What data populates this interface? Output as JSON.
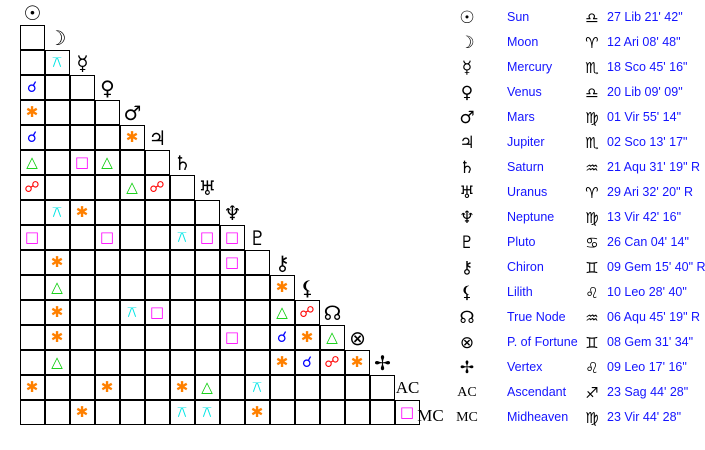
{
  "planets": [
    {
      "name": "Sun",
      "glyph": "☉",
      "sign": "♎",
      "position": "27 Lib 21' 42\""
    },
    {
      "name": "Moon",
      "glyph": "☽",
      "sign": "♈",
      "position": "12 Ari 08' 48\""
    },
    {
      "name": "Mercury",
      "glyph": "☿",
      "sign": "♏",
      "position": "18 Sco 45' 16\""
    },
    {
      "name": "Venus",
      "glyph": "♀",
      "sign": "♎",
      "position": "20 Lib 09' 09\""
    },
    {
      "name": "Mars",
      "glyph": "♂",
      "sign": "♍",
      "position": "01 Vir 55' 14\""
    },
    {
      "name": "Jupiter",
      "glyph": "♃",
      "sign": "♏",
      "position": "02 Sco 13' 17\""
    },
    {
      "name": "Saturn",
      "glyph": "♄",
      "sign": "♒",
      "position": "21 Aqu 31' 19\" R"
    },
    {
      "name": "Uranus",
      "glyph": "♅",
      "sign": "♈",
      "position": "29 Ari 32' 20\" R"
    },
    {
      "name": "Neptune",
      "glyph": "♆",
      "sign": "♍",
      "position": "13 Vir 42' 16\""
    },
    {
      "name": "Pluto",
      "glyph": "♇",
      "sign": "♋",
      "position": "26 Can 04' 14\""
    },
    {
      "name": "Chiron",
      "glyph": "⚷",
      "sign": "♊",
      "position": "09 Gem 15' 40\" R"
    },
    {
      "name": "Lilith",
      "glyph": "⚸",
      "sign": "♌",
      "position": "10 Leo 28' 40\""
    },
    {
      "name": "True Node",
      "glyph": "☊",
      "sign": "♒",
      "position": "06 Aqu 45' 19\" R"
    },
    {
      "name": "P. of Fortune",
      "glyph": "⊗",
      "sign": "♊",
      "position": "08 Gem 31' 34\""
    },
    {
      "name": "Vertex",
      "glyph": "✢",
      "sign": "♌",
      "position": "09 Leo 17' 16\""
    },
    {
      "name": "Ascendant",
      "glyph": "AC",
      "sign": "♐",
      "position": "23 Sag 44' 28\""
    },
    {
      "name": "Midheaven",
      "glyph": "MC",
      "sign": "♍",
      "position": "23 Vir 44' 28\""
    }
  ],
  "aspect_types": {
    "conjunction": {
      "glyph": "☌",
      "color": "#0000ff"
    },
    "sextile": {
      "glyph": "✱",
      "color": "#ff8000"
    },
    "square": {
      "glyph": "□",
      "color": "#ff00ff"
    },
    "trine": {
      "glyph": "△",
      "color": "#00cc00"
    },
    "opposition": {
      "glyph": "☍",
      "color": "#ff0000"
    },
    "quincunx": {
      "glyph": "⚻",
      "color": "#00e5e5"
    }
  },
  "aspects": [
    {
      "a": "Mercury",
      "b": "Moon",
      "type": "quincunx"
    },
    {
      "a": "Venus",
      "b": "Sun",
      "type": "conjunction"
    },
    {
      "a": "Mars",
      "b": "Sun",
      "type": "sextile"
    },
    {
      "a": "Jupiter",
      "b": "Sun",
      "type": "conjunction"
    },
    {
      "a": "Jupiter",
      "b": "Mars",
      "type": "sextile"
    },
    {
      "a": "Saturn",
      "b": "Sun",
      "type": "trine"
    },
    {
      "a": "Saturn",
      "b": "Mercury",
      "type": "square"
    },
    {
      "a": "Saturn",
      "b": "Venus",
      "type": "trine"
    },
    {
      "a": "Uranus",
      "b": "Sun",
      "type": "opposition"
    },
    {
      "a": "Uranus",
      "b": "Mars",
      "type": "trine"
    },
    {
      "a": "Uranus",
      "b": "Jupiter",
      "type": "opposition"
    },
    {
      "a": "Neptune",
      "b": "Moon",
      "type": "quincunx"
    },
    {
      "a": "Neptune",
      "b": "Mercury",
      "type": "sextile"
    },
    {
      "a": "Pluto",
      "b": "Sun",
      "type": "square"
    },
    {
      "a": "Pluto",
      "b": "Venus",
      "type": "square"
    },
    {
      "a": "Pluto",
      "b": "Saturn",
      "type": "quincunx"
    },
    {
      "a": "Pluto",
      "b": "Uranus",
      "type": "square"
    },
    {
      "a": "Pluto",
      "b": "Neptune",
      "type": "square"
    },
    {
      "a": "Chiron",
      "b": "Moon",
      "type": "sextile"
    },
    {
      "a": "Chiron",
      "b": "Neptune",
      "type": "square"
    },
    {
      "a": "Lilith",
      "b": "Moon",
      "type": "trine"
    },
    {
      "a": "Lilith",
      "b": "Chiron",
      "type": "sextile"
    },
    {
      "a": "True Node",
      "b": "Moon",
      "type": "sextile"
    },
    {
      "a": "True Node",
      "b": "Mars",
      "type": "quincunx"
    },
    {
      "a": "True Node",
      "b": "Jupiter",
      "type": "square"
    },
    {
      "a": "True Node",
      "b": "Chiron",
      "type": "trine"
    },
    {
      "a": "True Node",
      "b": "Lilith",
      "type": "opposition"
    },
    {
      "a": "P. of Fortune",
      "b": "Moon",
      "type": "sextile"
    },
    {
      "a": "P. of Fortune",
      "b": "Neptune",
      "type": "square"
    },
    {
      "a": "P. of Fortune",
      "b": "Chiron",
      "type": "conjunction"
    },
    {
      "a": "P. of Fortune",
      "b": "Lilith",
      "type": "sextile"
    },
    {
      "a": "P. of Fortune",
      "b": "True Node",
      "type": "trine"
    },
    {
      "a": "Vertex",
      "b": "Moon",
      "type": "trine"
    },
    {
      "a": "Vertex",
      "b": "Chiron",
      "type": "sextile"
    },
    {
      "a": "Vertex",
      "b": "Lilith",
      "type": "conjunction"
    },
    {
      "a": "Vertex",
      "b": "True Node",
      "type": "opposition"
    },
    {
      "a": "Vertex",
      "b": "P. of Fortune",
      "type": "sextile"
    },
    {
      "a": "Ascendant",
      "b": "Sun",
      "type": "sextile"
    },
    {
      "a": "Ascendant",
      "b": "Venus",
      "type": "sextile"
    },
    {
      "a": "Ascendant",
      "b": "Saturn",
      "type": "sextile"
    },
    {
      "a": "Ascendant",
      "b": "Uranus",
      "type": "trine"
    },
    {
      "a": "Ascendant",
      "b": "Pluto",
      "type": "quincunx"
    },
    {
      "a": "Midheaven",
      "b": "Mercury",
      "type": "sextile"
    },
    {
      "a": "Midheaven",
      "b": "Saturn",
      "type": "quincunx"
    },
    {
      "a": "Midheaven",
      "b": "Uranus",
      "type": "quincunx"
    },
    {
      "a": "Midheaven",
      "b": "Pluto",
      "type": "sextile"
    },
    {
      "a": "Midheaven",
      "b": "Ascendant",
      "type": "square"
    }
  ]
}
